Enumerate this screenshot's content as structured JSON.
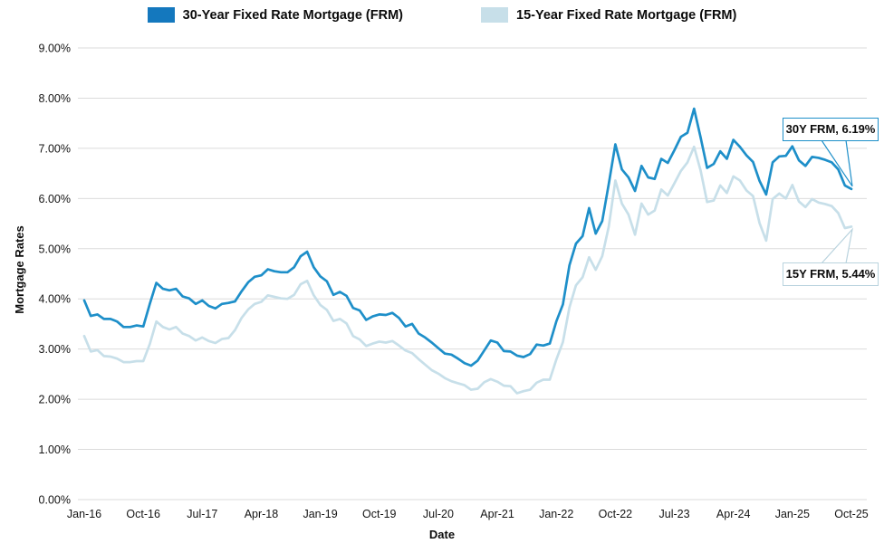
{
  "legend": [
    {
      "label": "30-Year Fixed Rate Mortgage (FRM)",
      "swatch_color": "#1478BE"
    },
    {
      "label": "15-Year Fixed Rate Mortgage (FRM)",
      "swatch_color": "#C7DFE9"
    }
  ],
  "chart_data": {
    "type": "line",
    "title": "",
    "xlabel": "Date",
    "ylabel": "Mortgage Rates",
    "ylim": [
      0,
      9
    ],
    "grid": "horizontal",
    "legend_position": "top-center",
    "gridline_color": "#DBDBDB",
    "y_tick_labels": [
      "0.00%",
      "1.00%",
      "2.00%",
      "3.00%",
      "4.00%",
      "5.00%",
      "6.00%",
      "7.00%",
      "8.00%",
      "9.00%"
    ],
    "x_tick_labels": [
      "Jan-16",
      "Oct-16",
      "Jul-17",
      "Apr-18",
      "Jan-19",
      "Oct-19",
      "Jul-20",
      "Apr-21",
      "Jan-22",
      "Oct-22",
      "Jul-23",
      "Apr-24",
      "Jan-25",
      "Oct-25"
    ],
    "x_tick_month_indices": [
      0,
      9,
      18,
      27,
      36,
      45,
      54,
      63,
      72,
      81,
      90,
      99,
      108,
      117
    ],
    "x_range": "monthly from Jan-2016 to Oct-2025",
    "series": [
      {
        "name": "30-Year Fixed Rate Mortgage (FRM)",
        "color": "#1E8FC9",
        "values": [
          3.97,
          3.66,
          3.69,
          3.6,
          3.6,
          3.55,
          3.44,
          3.44,
          3.47,
          3.45,
          3.9,
          4.32,
          4.2,
          4.17,
          4.2,
          4.05,
          4.01,
          3.9,
          3.97,
          3.86,
          3.81,
          3.9,
          3.92,
          3.95,
          4.15,
          4.33,
          4.44,
          4.47,
          4.59,
          4.55,
          4.53,
          4.53,
          4.63,
          4.85,
          4.94,
          4.63,
          4.45,
          4.35,
          4.08,
          4.14,
          4.06,
          3.82,
          3.77,
          3.58,
          3.65,
          3.69,
          3.68,
          3.72,
          3.62,
          3.45,
          3.5,
          3.31,
          3.23,
          3.13,
          3.02,
          2.91,
          2.89,
          2.81,
          2.72,
          2.67,
          2.77,
          2.97,
          3.17,
          3.13,
          2.96,
          2.95,
          2.87,
          2.84,
          2.9,
          3.09,
          3.07,
          3.11,
          3.55,
          3.89,
          4.67,
          5.1,
          5.25,
          5.81,
          5.3,
          5.55,
          6.29,
          7.08,
          6.58,
          6.42,
          6.15,
          6.65,
          6.42,
          6.39,
          6.79,
          6.71,
          6.96,
          7.23,
          7.31,
          7.79,
          7.22,
          6.61,
          6.69,
          6.94,
          6.79,
          7.17,
          7.03,
          6.86,
          6.73,
          6.35,
          6.08,
          6.72,
          6.84,
          6.85,
          7.04,
          6.76,
          6.65,
          6.83,
          6.81,
          6.77,
          6.72,
          6.58,
          6.26,
          6.19
        ]
      },
      {
        "name": "15-Year Fixed Rate Mortgage (FRM)",
        "color": "#C7DFE9",
        "values": [
          3.26,
          2.95,
          2.98,
          2.86,
          2.85,
          2.81,
          2.74,
          2.74,
          2.76,
          2.76,
          3.1,
          3.55,
          3.44,
          3.39,
          3.44,
          3.31,
          3.26,
          3.17,
          3.23,
          3.16,
          3.12,
          3.2,
          3.22,
          3.38,
          3.62,
          3.79,
          3.9,
          3.94,
          4.07,
          4.04,
          4.01,
          4.0,
          4.08,
          4.29,
          4.36,
          4.07,
          3.88,
          3.78,
          3.56,
          3.6,
          3.51,
          3.26,
          3.19,
          3.06,
          3.11,
          3.15,
          3.13,
          3.16,
          3.07,
          2.97,
          2.92,
          2.8,
          2.69,
          2.58,
          2.51,
          2.42,
          2.36,
          2.32,
          2.28,
          2.19,
          2.21,
          2.34,
          2.4,
          2.35,
          2.27,
          2.26,
          2.12,
          2.16,
          2.19,
          2.33,
          2.39,
          2.39,
          2.79,
          3.14,
          3.83,
          4.27,
          4.43,
          4.83,
          4.58,
          4.85,
          5.44,
          6.36,
          5.9,
          5.68,
          5.28,
          5.9,
          5.68,
          5.76,
          6.18,
          6.06,
          6.3,
          6.55,
          6.72,
          7.03,
          6.56,
          5.93,
          5.96,
          6.26,
          6.11,
          6.44,
          6.36,
          6.16,
          6.05,
          5.51,
          5.16,
          5.99,
          6.1,
          6.0,
          6.27,
          5.94,
          5.83,
          5.99,
          5.92,
          5.89,
          5.85,
          5.71,
          5.41,
          5.44
        ]
      }
    ],
    "annotations": [
      {
        "label": "30Y FRM, 6.19%",
        "series": 0,
        "value": 6.19,
        "border_color": "#1E8FC9"
      },
      {
        "label": "15Y FRM, 5.44%",
        "series": 1,
        "value": 5.44,
        "border_color": "#B9D3DE"
      }
    ]
  }
}
